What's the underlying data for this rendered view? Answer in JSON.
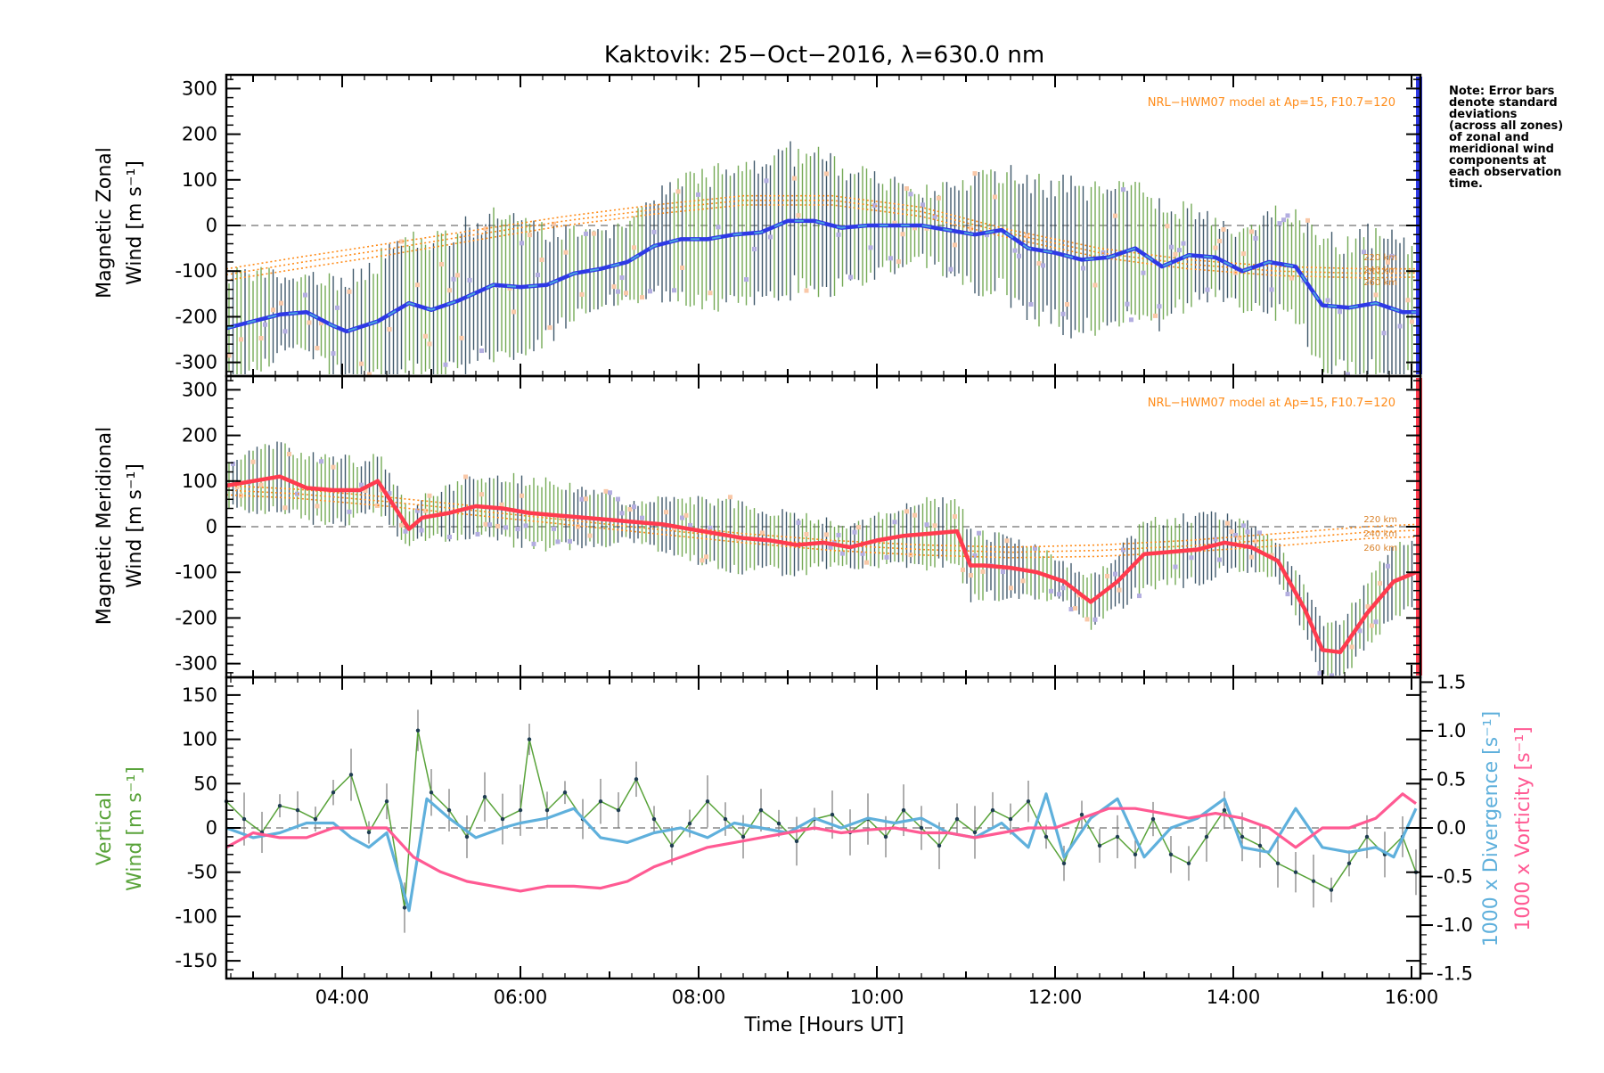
{
  "title": "Kaktovik: 25−Oct−2016, λ=630.0 nm",
  "note_lines": [
    "Note: Error bars",
    "denote standard",
    "deviations",
    "(across all zones)",
    "of zonal and",
    "meridional wind",
    "components at",
    "each observation",
    "time."
  ],
  "colors": {
    "zonal_main": "#2e39e6",
    "zonal_light": "#4aa3df",
    "meridional": "#ff3b4e",
    "model": "#ff8c1a",
    "vertical": "#59a33a",
    "divergence": "#5fb0dc",
    "vorticity": "#ff5a93",
    "scatter_purple": "#b3aee0",
    "scatter_peach": "#f9c8a8",
    "errbar_dark": "#1f3d52",
    "errbar_green": "#5d9c3a",
    "zero_line": "#888888"
  },
  "chart_data": [
    {
      "type": "line",
      "panel": "zonal",
      "ylabel_line1": "Magnetic Zonal",
      "ylabel_line2": "Wind [m s⁻¹]",
      "xlim": [
        2.7,
        16.1
      ],
      "ylim": [
        -330,
        330
      ],
      "yticks": [
        -300,
        -200,
        -100,
        0,
        100,
        200,
        300
      ],
      "model_label": "NRL−HWM07 model at Ap=15, F10.7=120",
      "model_altitude_labels": [
        "220 km",
        "240 km",
        "260 km"
      ],
      "series": [
        {
          "role": "mean",
          "x": [
            2.7,
            3.0,
            3.3,
            3.6,
            3.9,
            4.05,
            4.4,
            4.75,
            5.0,
            5.3,
            5.7,
            6.0,
            6.3,
            6.6,
            6.9,
            7.2,
            7.5,
            7.8,
            8.1,
            8.4,
            8.7,
            9.0,
            9.3,
            9.6,
            9.9,
            10.2,
            10.5,
            10.8,
            11.1,
            11.4,
            11.7,
            12.0,
            12.3,
            12.6,
            12.9,
            13.2,
            13.5,
            13.8,
            14.1,
            14.4,
            14.7,
            15.0,
            15.3,
            15.6,
            15.9,
            16.05
          ],
          "y": [
            -225,
            -210,
            -195,
            -190,
            -220,
            -232,
            -210,
            -170,
            -185,
            -165,
            -130,
            -135,
            -130,
            -105,
            -95,
            -80,
            -45,
            -30,
            -30,
            -20,
            -15,
            10,
            10,
            -5,
            0,
            0,
            0,
            -10,
            -20,
            -10,
            -50,
            -60,
            -75,
            -70,
            -50,
            -90,
            -65,
            -70,
            -100,
            -80,
            -90,
            -175,
            -180,
            -170,
            -190,
            -190
          ]
        },
        {
          "role": "model",
          "name": "220 km",
          "x": [
            2.7,
            3.5,
            4.5,
            5.5,
            6.5,
            7.5,
            8.5,
            9.5,
            10.5,
            11.5,
            12.5,
            13.5,
            14.5,
            15.5,
            16.05
          ],
          "y": [
            -95,
            -70,
            -40,
            -10,
            20,
            45,
            65,
            65,
            40,
            -10,
            -50,
            -75,
            -90,
            -95,
            -95
          ]
        },
        {
          "role": "model",
          "name": "240 km",
          "x": [
            2.7,
            3.5,
            4.5,
            5.5,
            6.5,
            7.5,
            8.5,
            9.5,
            10.5,
            11.5,
            12.5,
            13.5,
            14.5,
            15.5,
            16.05
          ],
          "y": [
            -108,
            -82,
            -52,
            -20,
            10,
            35,
            55,
            55,
            30,
            -18,
            -60,
            -85,
            -100,
            -105,
            -104
          ]
        },
        {
          "role": "model",
          "name": "260 km",
          "x": [
            2.7,
            3.5,
            4.5,
            5.5,
            6.5,
            7.5,
            8.5,
            9.5,
            10.5,
            11.5,
            12.5,
            13.5,
            14.5,
            15.5,
            16.05
          ],
          "y": [
            -120,
            -95,
            -65,
            -32,
            0,
            25,
            45,
            45,
            20,
            -28,
            -70,
            -95,
            -110,
            -115,
            -113
          ]
        }
      ]
    },
    {
      "type": "line",
      "panel": "meridional",
      "ylabel_line1": "Magnetic Meridional",
      "ylabel_line2": "Wind [m s⁻¹]",
      "xlim": [
        2.7,
        16.1
      ],
      "ylim": [
        -330,
        330
      ],
      "yticks": [
        -300,
        -200,
        -100,
        0,
        100,
        200,
        300
      ],
      "model_label": "NRL−HWM07 model at Ap=15, F10.7=120",
      "model_altitude_labels": [
        "220 km",
        "240 km",
        "260 km"
      ],
      "series": [
        {
          "role": "mean",
          "x": [
            2.7,
            3.0,
            3.3,
            3.6,
            3.9,
            4.2,
            4.4,
            4.75,
            4.9,
            5.2,
            5.5,
            5.8,
            6.1,
            6.4,
            6.7,
            7.0,
            7.3,
            7.6,
            7.9,
            8.2,
            8.5,
            8.8,
            9.1,
            9.4,
            9.7,
            10.0,
            10.3,
            10.6,
            10.9,
            11.05,
            11.2,
            11.5,
            11.8,
            12.1,
            12.4,
            12.7,
            13.0,
            13.3,
            13.6,
            13.9,
            14.2,
            14.5,
            14.8,
            15.0,
            15.2,
            15.5,
            15.8,
            16.05
          ],
          "y": [
            90,
            100,
            110,
            85,
            80,
            80,
            100,
            -5,
            20,
            30,
            45,
            40,
            30,
            25,
            20,
            15,
            10,
            5,
            -5,
            -15,
            -25,
            -30,
            -40,
            -35,
            -45,
            -30,
            -20,
            -15,
            -10,
            -85,
            -85,
            -90,
            -100,
            -120,
            -165,
            -120,
            -60,
            -55,
            -50,
            -35,
            -45,
            -75,
            -180,
            -270,
            -275,
            -190,
            -120,
            -100
          ]
        },
        {
          "role": "model",
          "name": "220 km",
          "x": [
            2.7,
            3.5,
            4.5,
            5.5,
            6.5,
            7.5,
            8.5,
            9.5,
            10.5,
            11.5,
            12.5,
            13.5,
            14.5,
            15.5,
            16.05
          ],
          "y": [
            90,
            82,
            65,
            45,
            25,
            5,
            -15,
            -30,
            -40,
            -45,
            -40,
            -30,
            -15,
            0,
            5
          ]
        },
        {
          "role": "model",
          "name": "240 km",
          "x": [
            2.7,
            3.5,
            4.5,
            5.5,
            6.5,
            7.5,
            8.5,
            9.5,
            10.5,
            11.5,
            12.5,
            13.5,
            14.5,
            15.5,
            16.05
          ],
          "y": [
            80,
            72,
            55,
            35,
            15,
            -5,
            -25,
            -40,
            -50,
            -56,
            -52,
            -42,
            -28,
            -12,
            -8
          ]
        },
        {
          "role": "model",
          "name": "260 km",
          "x": [
            2.7,
            3.5,
            4.5,
            5.5,
            6.5,
            7.5,
            8.5,
            9.5,
            10.5,
            11.5,
            12.5,
            13.5,
            14.5,
            15.5,
            16.05
          ],
          "y": [
            70,
            62,
            45,
            25,
            5,
            -15,
            -35,
            -52,
            -62,
            -68,
            -65,
            -55,
            -42,
            -26,
            -22
          ]
        }
      ]
    },
    {
      "type": "line",
      "panel": "vertical",
      "ylabel_line1": "Vertical",
      "ylabel_line2": "Wind [m s⁻¹]",
      "y2label_line1": "1000 x Divergence [s⁻¹]",
      "y2label_line2": "1000 x Vorticity [s⁻¹]",
      "xlabel": "Time [Hours UT]",
      "xlim": [
        2.7,
        16.1
      ],
      "ylim": [
        -170,
        170
      ],
      "y2lim": [
        -1.55,
        1.55
      ],
      "yticks": [
        -150,
        -100,
        -50,
        0,
        50,
        100,
        150
      ],
      "y2ticks": [
        -1.5,
        -1.0,
        -0.5,
        0.0,
        0.5,
        1.0,
        1.5
      ],
      "xticks": [
        4,
        6,
        8,
        10,
        12,
        14,
        16
      ],
      "xtick_labels": [
        "04:00",
        "06:00",
        "08:00",
        "10:00",
        "12:00",
        "14:00",
        "16:00"
      ],
      "series": [
        {
          "role": "vertical",
          "x": [
            2.7,
            2.9,
            3.1,
            3.3,
            3.5,
            3.7,
            3.9,
            4.1,
            4.3,
            4.5,
            4.7,
            4.85,
            5.0,
            5.2,
            5.4,
            5.6,
            5.8,
            6.0,
            6.1,
            6.3,
            6.5,
            6.7,
            6.9,
            7.1,
            7.3,
            7.5,
            7.7,
            7.9,
            8.1,
            8.3,
            8.5,
            8.7,
            8.9,
            9.1,
            9.3,
            9.5,
            9.7,
            9.9,
            10.1,
            10.3,
            10.5,
            10.7,
            10.9,
            11.1,
            11.3,
            11.5,
            11.7,
            11.9,
            12.1,
            12.3,
            12.5,
            12.7,
            12.9,
            13.1,
            13.3,
            13.5,
            13.7,
            13.9,
            14.1,
            14.3,
            14.5,
            14.7,
            14.9,
            15.1,
            15.3,
            15.5,
            15.7,
            15.9,
            16.05
          ],
          "y": [
            30,
            10,
            -5,
            25,
            20,
            10,
            40,
            60,
            -5,
            30,
            -90,
            110,
            40,
            20,
            -10,
            35,
            10,
            20,
            100,
            20,
            40,
            10,
            30,
            20,
            55,
            10,
            -20,
            5,
            30,
            10,
            -10,
            20,
            5,
            -15,
            10,
            15,
            -5,
            10,
            -10,
            20,
            0,
            -20,
            10,
            -5,
            20,
            10,
            30,
            -10,
            -40,
            15,
            -20,
            -10,
            -30,
            10,
            -30,
            -40,
            -10,
            20,
            -10,
            -20,
            -40,
            -50,
            -60,
            -70,
            -40,
            -10,
            -30,
            -10,
            -50
          ]
        },
        {
          "role": "divergence",
          "x": [
            2.7,
            3.0,
            3.3,
            3.6,
            3.9,
            4.1,
            4.3,
            4.5,
            4.75,
            4.95,
            5.2,
            5.5,
            5.8,
            6.0,
            6.3,
            6.6,
            6.9,
            7.2,
            7.5,
            7.8,
            8.1,
            8.4,
            8.7,
            9.0,
            9.3,
            9.6,
            9.9,
            10.2,
            10.5,
            10.8,
            11.1,
            11.4,
            11.7,
            11.9,
            12.1,
            12.4,
            12.7,
            13.0,
            13.3,
            13.6,
            13.9,
            14.1,
            14.4,
            14.7,
            15.0,
            15.3,
            15.6,
            15.8,
            16.05
          ],
          "y": [
            0.0,
            -0.1,
            -0.05,
            0.05,
            0.05,
            -0.1,
            -0.2,
            -0.05,
            -0.85,
            0.3,
            0.1,
            -0.1,
            0.0,
            0.05,
            0.1,
            0.2,
            -0.1,
            -0.15,
            -0.05,
            0.0,
            -0.1,
            0.05,
            0.0,
            -0.05,
            0.1,
            0.0,
            0.1,
            0.05,
            0.1,
            -0.05,
            -0.1,
            0.05,
            -0.2,
            0.35,
            -0.3,
            0.1,
            0.3,
            -0.3,
            0.0,
            0.1,
            0.3,
            -0.2,
            -0.25,
            0.2,
            -0.2,
            -0.25,
            -0.2,
            -0.3,
            0.2
          ]
        },
        {
          "role": "vorticity",
          "x": [
            2.7,
            3.0,
            3.3,
            3.6,
            3.9,
            4.2,
            4.5,
            4.8,
            5.1,
            5.4,
            5.7,
            6.0,
            6.3,
            6.6,
            6.9,
            7.2,
            7.5,
            7.8,
            8.1,
            8.4,
            8.7,
            9.0,
            9.3,
            9.6,
            9.9,
            10.2,
            10.5,
            10.8,
            11.1,
            11.4,
            11.7,
            12.0,
            12.3,
            12.6,
            12.9,
            13.2,
            13.5,
            13.8,
            14.1,
            14.4,
            14.7,
            15.0,
            15.3,
            15.6,
            15.9,
            16.05
          ],
          "y": [
            -0.2,
            -0.05,
            -0.1,
            -0.1,
            0.0,
            0.0,
            0.0,
            -0.3,
            -0.45,
            -0.55,
            -0.6,
            -0.65,
            -0.6,
            -0.6,
            -0.62,
            -0.55,
            -0.4,
            -0.3,
            -0.2,
            -0.15,
            -0.1,
            -0.05,
            0.0,
            -0.05,
            -0.02,
            0.0,
            -0.05,
            -0.05,
            -0.1,
            -0.05,
            0.0,
            0.0,
            0.1,
            0.2,
            0.2,
            0.15,
            0.1,
            0.15,
            0.1,
            0.0,
            -0.2,
            0.0,
            0.0,
            0.1,
            0.35,
            0.25
          ]
        }
      ]
    }
  ]
}
